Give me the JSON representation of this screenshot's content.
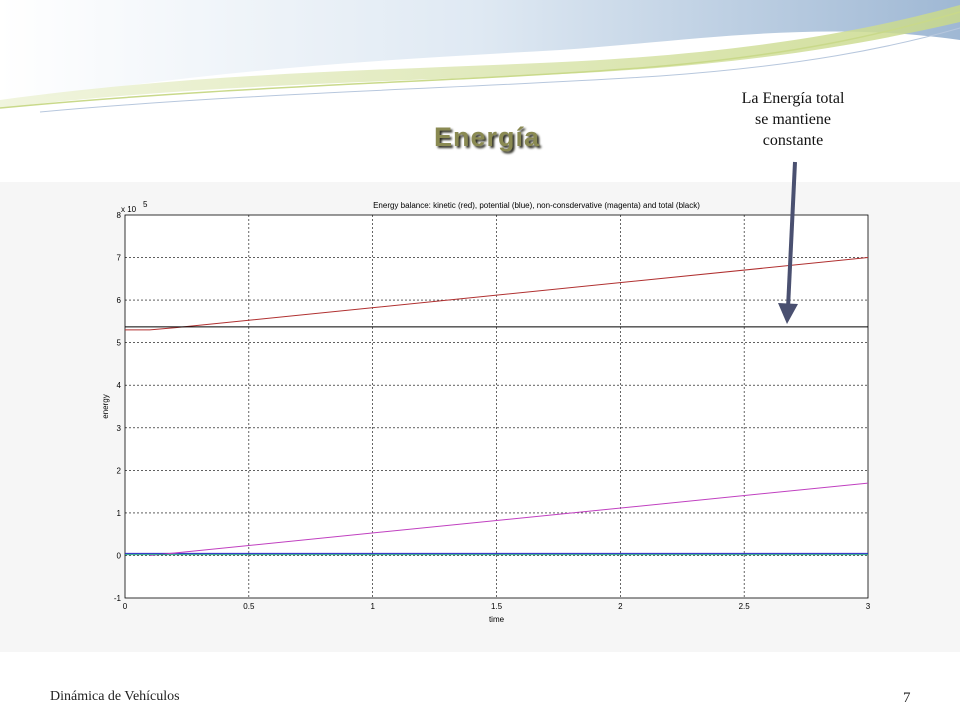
{
  "slide": {
    "title": "Energía",
    "annotation_lines": [
      "La Energía total",
      "se mantiene",
      "constante"
    ],
    "footer_left": "Dinámica de Vehículos",
    "page_number": "7",
    "colors": {
      "title": "#8a8a52",
      "arrow": "#4a5070",
      "wave_blue": "#9fb8d4",
      "wave_green": "#c9d98a"
    }
  },
  "chart_data": {
    "type": "line",
    "title": "Energy balance: kinetic (red), potential (blue), non-consdervative (magenta) and total (black)",
    "xlabel": "time",
    "ylabel": "energy",
    "y_multiplier": "x 10",
    "y_multiplier_exp": "5",
    "xlim": [
      0,
      3
    ],
    "ylim": [
      -1,
      8
    ],
    "grid": true,
    "xticks": [
      "0",
      "0.5",
      "1",
      "1.5",
      "2",
      "2.5",
      "3"
    ],
    "yticks": [
      "-1",
      "0",
      "1",
      "2",
      "3",
      "4",
      "5",
      "6",
      "7",
      "8"
    ],
    "series": [
      {
        "name": "kinetic",
        "color": "#b03030",
        "x": [
          0,
          0.1,
          0.2,
          3
        ],
        "y": [
          5.3,
          5.3,
          5.35,
          7.0
        ]
      },
      {
        "name": "potential",
        "color": "#2020c0",
        "x": [
          0,
          3
        ],
        "y": [
          0.05,
          0.05
        ]
      },
      {
        "name": "non-consdervative",
        "color": "#c040c0",
        "x": [
          0.1,
          3
        ],
        "y": [
          0.0,
          1.7
        ]
      },
      {
        "name": "total",
        "color": "#000000",
        "x": [
          0,
          3
        ],
        "y": [
          5.37,
          5.37
        ]
      },
      {
        "name": "",
        "color": "#20a080",
        "x": [
          0,
          3
        ],
        "y": [
          0.02,
          0.02
        ]
      }
    ]
  }
}
